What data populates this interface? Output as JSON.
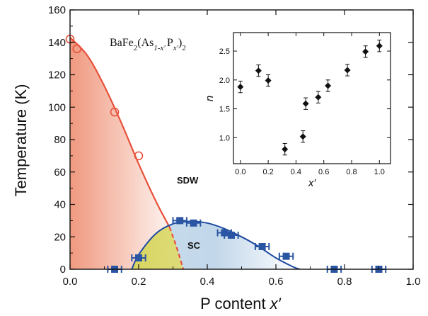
{
  "chart_data": [
    {
      "type": "scatter",
      "title": "",
      "formula": {
        "base": "BaFe",
        "sub1": "2",
        "mid": "(As",
        "sub2": "1-x′",
        "p": "P",
        "sub3": "x′",
        "close": ")",
        "sub4": "2"
      },
      "xlabel": "P content x′",
      "ylabel": "Temperature (K)",
      "xlim": [
        0,
        1.0
      ],
      "ylim": [
        0,
        160
      ],
      "xticks": [
        "0.0",
        "0.2",
        "0.4",
        "0.6",
        "0.8",
        "1.0"
      ],
      "yticks": [
        "0",
        "20",
        "40",
        "60",
        "80",
        "100",
        "120",
        "140",
        "160"
      ],
      "region_labels": [
        "SDW",
        "SC"
      ],
      "colors": {
        "sdw": "#e8503a",
        "sc_marker": "#2a55a3",
        "sc_line": "#1f4aa0",
        "sdw_fill": "#f2a38f",
        "sc_fill": "#a9c6e0",
        "overlap_fill": "#d9d56a"
      },
      "series": [
        {
          "marker": "open-circle",
          "x": [
            0.0,
            0.02,
            0.13,
            0.2
          ],
          "y": [
            142,
            136,
            97,
            70
          ]
        },
        {
          "marker": "filled-square",
          "x": [
            0.13,
            0.2,
            0.32,
            0.36,
            0.45,
            0.47,
            0.56,
            0.63,
            0.77,
            0.9
          ],
          "y": [
            0,
            7,
            30,
            28.5,
            22.5,
            21,
            14,
            8,
            0,
            0
          ],
          "xerr": [
            0.02,
            0.02,
            0.02,
            0.02,
            0.02,
            0.02,
            0.02,
            0.02,
            0.02,
            0.02
          ]
        }
      ],
      "curves": [
        {
          "role": "SDW boundary",
          "x": [
            0.0,
            0.05,
            0.1,
            0.15,
            0.2,
            0.25,
            0.29
          ],
          "y": [
            143,
            132,
            113,
            90,
            65,
            42,
            26
          ]
        },
        {
          "role": "SDW boundary (extrapolated, dashed)",
          "x": [
            0.29,
            0.31,
            0.33
          ],
          "y": [
            26,
            14,
            0
          ]
        },
        {
          "role": "SC dome",
          "x": [
            0.18,
            0.2,
            0.25,
            0.3,
            0.35,
            0.4,
            0.45,
            0.5,
            0.55,
            0.6,
            0.65,
            0.67
          ],
          "y": [
            0,
            9,
            22,
            28,
            29.5,
            28.5,
            25,
            20,
            14,
            7,
            1.5,
            0
          ]
        }
      ]
    },
    {
      "type": "scatter",
      "title": "",
      "xlabel": "x′",
      "ylabel": "n",
      "xlim": [
        -0.05,
        1.08
      ],
      "ylim": [
        0.55,
        2.82
      ],
      "xticks": [
        "0.0",
        "0.2",
        "0.4",
        "0.6",
        "0.8",
        "1.0"
      ],
      "yticks": [
        "1.0",
        "1.5",
        "2.0",
        "2.5"
      ],
      "series": [
        {
          "marker": "filled-diamond",
          "x": [
            0.0,
            0.13,
            0.2,
            0.32,
            0.45,
            0.47,
            0.56,
            0.63,
            0.77,
            0.9,
            1.0
          ],
          "y": [
            1.88,
            2.16,
            1.99,
            0.8,
            1.02,
            1.59,
            1.7,
            1.9,
            2.17,
            2.49,
            2.59
          ],
          "yerr": [
            0.1,
            0.1,
            0.1,
            0.1,
            0.1,
            0.1,
            0.1,
            0.1,
            0.1,
            0.1,
            0.1
          ]
        }
      ]
    }
  ]
}
